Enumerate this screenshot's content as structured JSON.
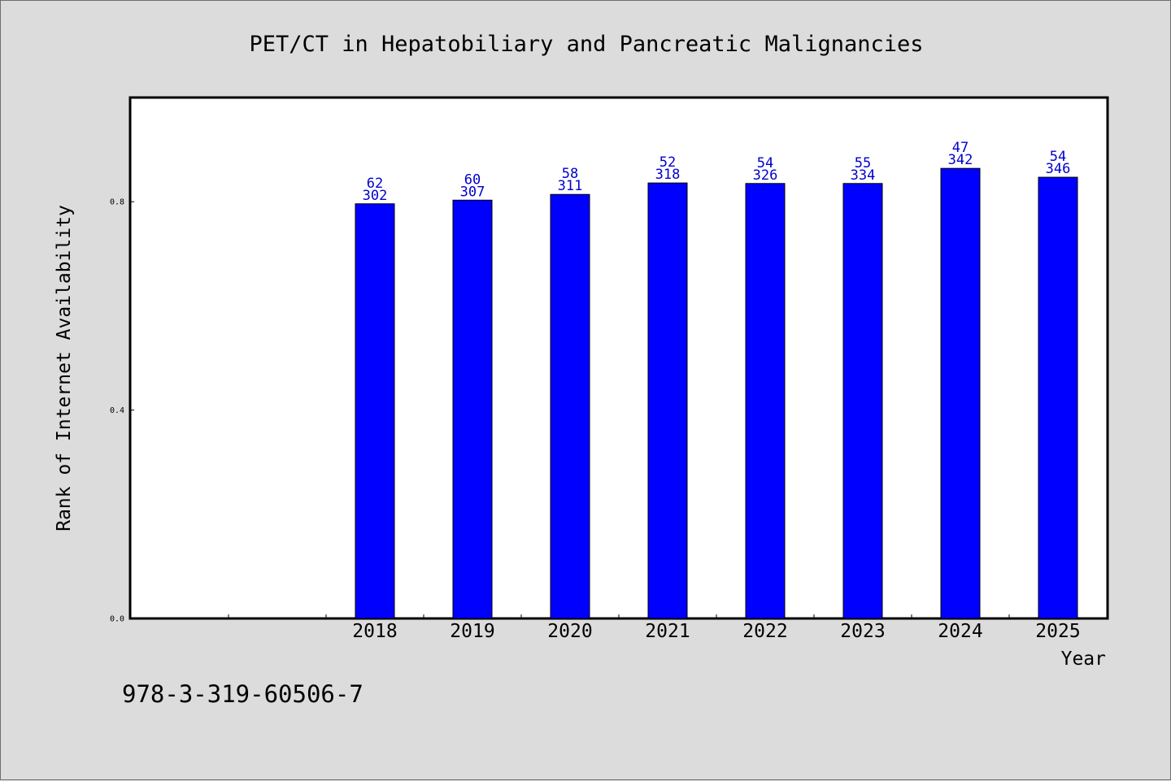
{
  "chart_data": {
    "type": "bar",
    "title": "PET/CT in Hepatobiliary and Pancreatic Malignancies",
    "xlabel": "Year",
    "ylabel": "Rank of Internet Availability",
    "categories": [
      "",
      "",
      "2018",
      "2019",
      "2020",
      "2021",
      "2022",
      "2023",
      "2024",
      "2025"
    ],
    "values": [
      null,
      null,
      0.796,
      0.803,
      0.814,
      0.836,
      0.835,
      0.835,
      0.864,
      0.847
    ],
    "labels_top": [
      "",
      "",
      "62",
      "60",
      "58",
      "52",
      "54",
      "55",
      "47",
      "54"
    ],
    "labels_bottom": [
      "",
      "",
      "302",
      "307",
      "311",
      "318",
      "326",
      "334",
      "342",
      "346"
    ],
    "yticks": [
      0.0,
      0.4,
      0.8
    ],
    "ytick_labels": [
      "0.0",
      "0.4",
      "0.8"
    ],
    "ylim": [
      0,
      1.0
    ],
    "bar_color": "#0000ff",
    "label_color": "#0000cc",
    "grid": false,
    "legend": "none"
  },
  "footer": {
    "isbn": "978-3-319-60506-7"
  }
}
